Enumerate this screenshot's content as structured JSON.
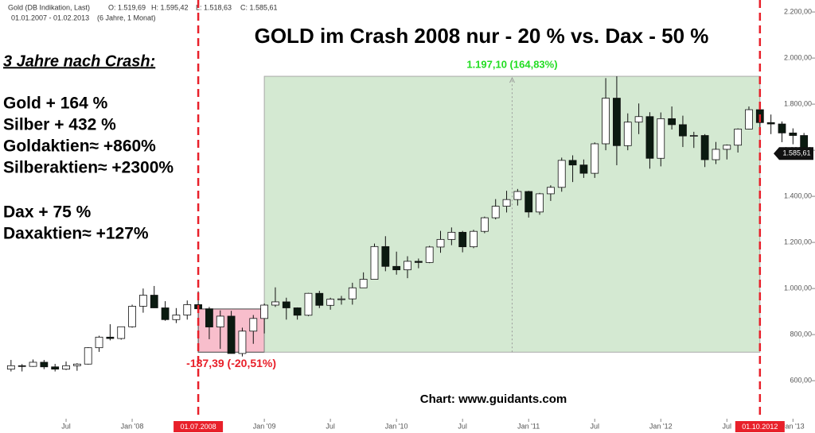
{
  "chart_data": {
    "type": "candlestick",
    "header": {
      "instrument": "Gold (DB Indikation, Last)",
      "open": "O: 1.519,69",
      "high": "H: 1.595,42",
      "low": "L: 1.518,63",
      "close": "C: 1.585,61",
      "period": "01.01.2007 - 01.02.2013",
      "span": "(6 Jahre, 1 Monat)"
    },
    "title": "GOLD im Crash 2008 nur - 20 % vs. Dax - 50 %",
    "sidebar": {
      "heading": "3 Jahre nach Crash:",
      "lines": [
        "Gold + 164 %",
        "Silber + 432 %",
        "Goldaktien≈ +860%",
        "Silberaktien≈ +2300%",
        "Dax + 75 %",
        "Daxaktien≈ +127%"
      ]
    },
    "source": "Chart: www.guidants.com",
    "x": [
      "2007-02",
      "2007-03",
      "2007-04",
      "2007-05",
      "2007-06",
      "2007-07",
      "2007-08",
      "2007-09",
      "2007-10",
      "2007-11",
      "2007-12",
      "2008-01",
      "2008-02",
      "2008-03",
      "2008-04",
      "2008-05",
      "2008-06",
      "2008-07",
      "2008-08",
      "2008-09",
      "2008-10",
      "2008-11",
      "2008-12",
      "2009-01",
      "2009-02",
      "2009-03",
      "2009-04",
      "2009-05",
      "2009-06",
      "2009-07",
      "2009-08",
      "2009-09",
      "2009-10",
      "2009-11",
      "2009-12",
      "2010-01",
      "2010-02",
      "2010-03",
      "2010-04",
      "2010-05",
      "2010-06",
      "2010-07",
      "2010-08",
      "2010-09",
      "2010-10",
      "2010-11",
      "2010-12",
      "2011-01",
      "2011-02",
      "2011-03",
      "2011-04",
      "2011-05",
      "2011-06",
      "2011-07",
      "2011-08",
      "2011-09",
      "2011-10",
      "2011-11",
      "2011-12",
      "2012-01",
      "2012-02",
      "2012-03",
      "2012-04",
      "2012-05",
      "2012-06",
      "2012-07",
      "2012-08",
      "2012-09",
      "2012-10",
      "2012-11",
      "2012-12",
      "2013-01",
      "2013-02"
    ],
    "open": [
      650,
      665,
      662,
      680,
      660,
      650,
      665,
      672,
      743,
      789,
      783,
      834,
      923,
      971,
      916,
      865,
      885,
      930,
      912,
      833,
      880,
      718,
      815,
      870,
      928,
      942,
      916,
      884,
      979,
      927,
      954,
      955,
      1003,
      1040,
      1182,
      1096,
      1081,
      1118,
      1113,
      1180,
      1213,
      1244,
      1181,
      1248,
      1307,
      1357,
      1386,
      1421,
      1332,
      1411,
      1439,
      1556,
      1536,
      1500,
      1628,
      1826,
      1620,
      1722,
      1746,
      1565,
      1737,
      1711,
      1662,
      1664,
      1559,
      1604,
      1622,
      1692,
      1776,
      1720,
      1714,
      1675,
      1664
    ],
    "high": [
      690,
      672,
      692,
      690,
      673,
      683,
      676,
      745,
      795,
      845,
      835,
      930,
      1000,
      1011,
      945,
      915,
      948,
      988,
      920,
      905,
      903,
      830,
      885,
      935,
      1005,
      960,
      918,
      981,
      990,
      960,
      968,
      1025,
      1070,
      1195,
      1227,
      1160,
      1140,
      1130,
      1185,
      1250,
      1265,
      1250,
      1255,
      1312,
      1388,
      1424,
      1432,
      1424,
      1415,
      1448,
      1568,
      1578,
      1560,
      1634,
      1913,
      1921,
      1760,
      1803,
      1765,
      1764,
      1790,
      1750,
      1680,
      1670,
      1636,
      1625,
      1695,
      1790,
      1795,
      1755,
      1725,
      1695,
      1675
    ],
    "low": [
      640,
      640,
      660,
      650,
      640,
      646,
      643,
      670,
      725,
      775,
      778,
      830,
      895,
      915,
      860,
      850,
      865,
      910,
      780,
      738,
      724,
      705,
      760,
      805,
      920,
      865,
      865,
      880,
      915,
      908,
      930,
      930,
      1003,
      1040,
      1075,
      1060,
      1045,
      1088,
      1110,
      1155,
      1188,
      1157,
      1175,
      1240,
      1300,
      1330,
      1360,
      1308,
      1320,
      1380,
      1420,
      1462,
      1480,
      1480,
      1600,
      1535,
      1600,
      1670,
      1520,
      1530,
      1690,
      1614,
      1610,
      1527,
      1540,
      1560,
      1590,
      1690,
      1695,
      1670,
      1635,
      1626,
      1560
    ],
    "close": [
      665,
      662,
      680,
      660,
      650,
      665,
      672,
      743,
      789,
      783,
      834,
      923,
      971,
      916,
      865,
      885,
      930,
      912,
      833,
      880,
      718,
      815,
      870,
      928,
      942,
      916,
      884,
      979,
      927,
      954,
      955,
      1003,
      1040,
      1182,
      1096,
      1081,
      1118,
      1113,
      1180,
      1213,
      1244,
      1181,
      1248,
      1307,
      1357,
      1386,
      1421,
      1332,
      1411,
      1439,
      1556,
      1536,
      1500,
      1628,
      1826,
      1620,
      1722,
      1746,
      1565,
      1737,
      1711,
      1662,
      1664,
      1559,
      1604,
      1622,
      1692,
      1776,
      1720,
      1714,
      1675,
      1664,
      1585.61
    ],
    "up_color": "#ffffff",
    "down_color": "#0b1a10",
    "xlim": [
      "2007-01",
      "2013-03"
    ],
    "ylim": [
      435,
      2252
    ],
    "yticks": [
      {
        "value": 600,
        "label": "600,00"
      },
      {
        "value": 800,
        "label": "800,00"
      },
      {
        "value": 1000,
        "label": "1.000,00"
      },
      {
        "value": 1200,
        "label": "1.200,00"
      },
      {
        "value": 1400,
        "label": "1.400,00"
      },
      {
        "value": 1600,
        "label": "1.600,00"
      },
      {
        "value": 1800,
        "label": "1.800,00"
      },
      {
        "value": 2000,
        "label": "2.000,00"
      },
      {
        "value": 2200,
        "label": "2.200,00"
      }
    ],
    "xticks": [
      {
        "value": "2007-07",
        "label": "Jul"
      },
      {
        "value": "2008-01",
        "label": "Jan '08"
      },
      {
        "value": "2009-01",
        "label": "Jan '09"
      },
      {
        "value": "2009-07",
        "label": "Jul"
      },
      {
        "value": "2010-01",
        "label": "Jan '10"
      },
      {
        "value": "2010-07",
        "label": "Jul"
      },
      {
        "value": "2011-01",
        "label": "Jan '11"
      },
      {
        "value": "2011-07",
        "label": "Jul"
      },
      {
        "value": "2012-01",
        "label": "Jan '12"
      },
      {
        "value": "2012-07",
        "label": "Jul"
      },
      {
        "value": "2013-01",
        "label": "Jan '13"
      }
    ],
    "markers": [
      {
        "x": "2008-07",
        "label": "01.07.2008",
        "color": "#e8202a"
      },
      {
        "x": "2012-10",
        "label": "01.10.2012",
        "color": "#e8202a"
      }
    ],
    "ranges": [
      {
        "from": "2008-07",
        "to": "2009-01",
        "low": 723.72,
        "high": 911.11,
        "color": "#f7b3c4",
        "label_color": "#e8202a",
        "label": "-187,39 (-20,51%)"
      },
      {
        "from": "2009-01",
        "to": "2012-10",
        "low": 723.72,
        "high": 1920.82,
        "color": "#cde6cb",
        "label_color": "#22dd22",
        "label": "1.197,10 (164,83%)"
      }
    ],
    "last_price": {
      "value": 1585.61,
      "label": "1.585,61"
    }
  }
}
